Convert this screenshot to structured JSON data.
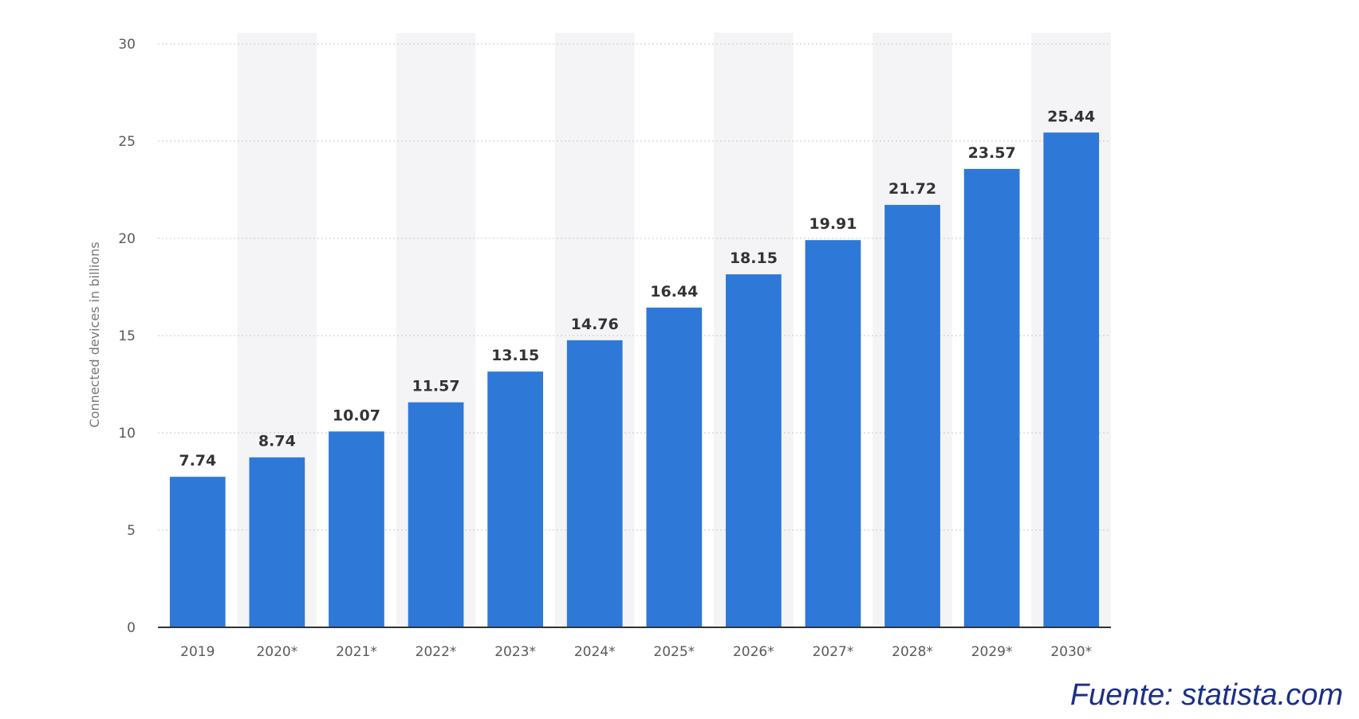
{
  "chart_data": {
    "type": "bar",
    "categories": [
      "2019",
      "2020*",
      "2021*",
      "2022*",
      "2023*",
      "2024*",
      "2025*",
      "2026*",
      "2027*",
      "2028*",
      "2029*",
      "2030*"
    ],
    "values": [
      7.74,
      8.74,
      10.07,
      11.57,
      13.15,
      14.76,
      16.44,
      18.15,
      19.91,
      21.72,
      23.57,
      25.44
    ],
    "value_labels": [
      "7.74",
      "8.74",
      "10.07",
      "11.57",
      "13.15",
      "14.76",
      "16.44",
      "18.15",
      "19.91",
      "21.72",
      "23.57",
      "25.44"
    ],
    "title": "",
    "xlabel": "",
    "ylabel": "Connected devices in billions",
    "ylim": [
      0,
      30
    ],
    "yticks": [
      "0",
      "5",
      "10",
      "15",
      "20",
      "25",
      "30"
    ],
    "grid": true,
    "alternating_column_shading": true,
    "colors": {
      "bar": "#2e78d8",
      "band": "#f4f4f6",
      "grid": "#c8c8c8",
      "axis": "#333333"
    }
  },
  "source": "Fuente: statista.com"
}
